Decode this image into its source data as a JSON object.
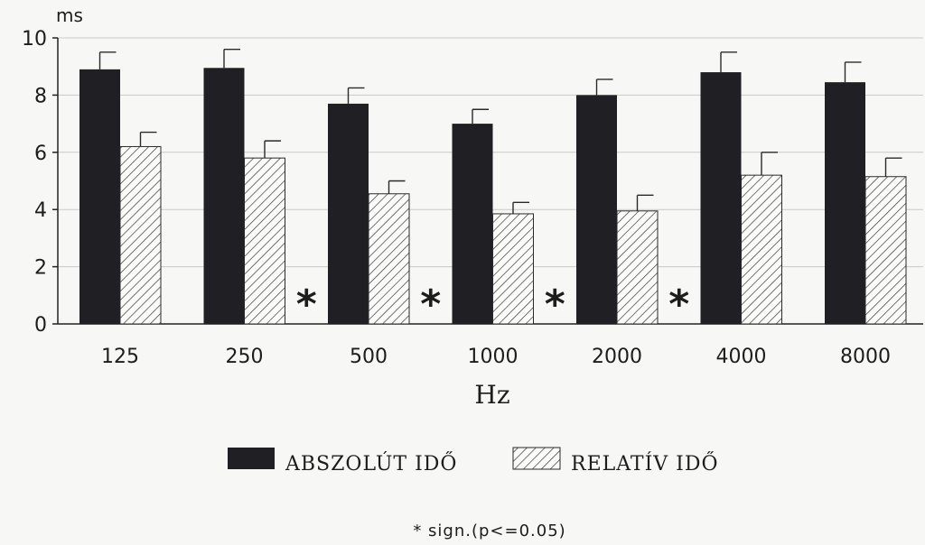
{
  "chart_data": {
    "type": "bar",
    "ylabel": "ms",
    "xlabel": "Hz",
    "ylim": [
      0,
      10
    ],
    "yticks": [
      "0",
      "2",
      "4",
      "6",
      "8",
      "10"
    ],
    "grid": true,
    "categories": [
      "125",
      "250",
      "500",
      "1000",
      "2000",
      "4000",
      "8000"
    ],
    "series": [
      {
        "name": "ABSZOLÚT IDŐ",
        "color": "#1f1f24",
        "pattern": "solid",
        "values": [
          8.9,
          8.95,
          7.7,
          7.0,
          8.0,
          8.8,
          8.45
        ],
        "errors": [
          0.6,
          0.65,
          0.55,
          0.5,
          0.55,
          0.7,
          0.7
        ]
      },
      {
        "name": "RELATÍV IDŐ",
        "color": "#2a2a2a",
        "pattern": "hatched",
        "values": [
          6.2,
          5.8,
          4.55,
          3.85,
          3.95,
          5.2,
          5.15
        ],
        "errors": [
          0.5,
          0.6,
          0.45,
          0.4,
          0.55,
          0.8,
          0.65
        ]
      }
    ],
    "significance_marker": "*",
    "significance_between": [
      [
        "250",
        "500"
      ],
      [
        "500",
        "1000"
      ],
      [
        "1000",
        "2000"
      ],
      [
        "2000",
        "4000"
      ]
    ],
    "legend_position": "bottom",
    "note": "* sign.(p<=0.05)"
  }
}
